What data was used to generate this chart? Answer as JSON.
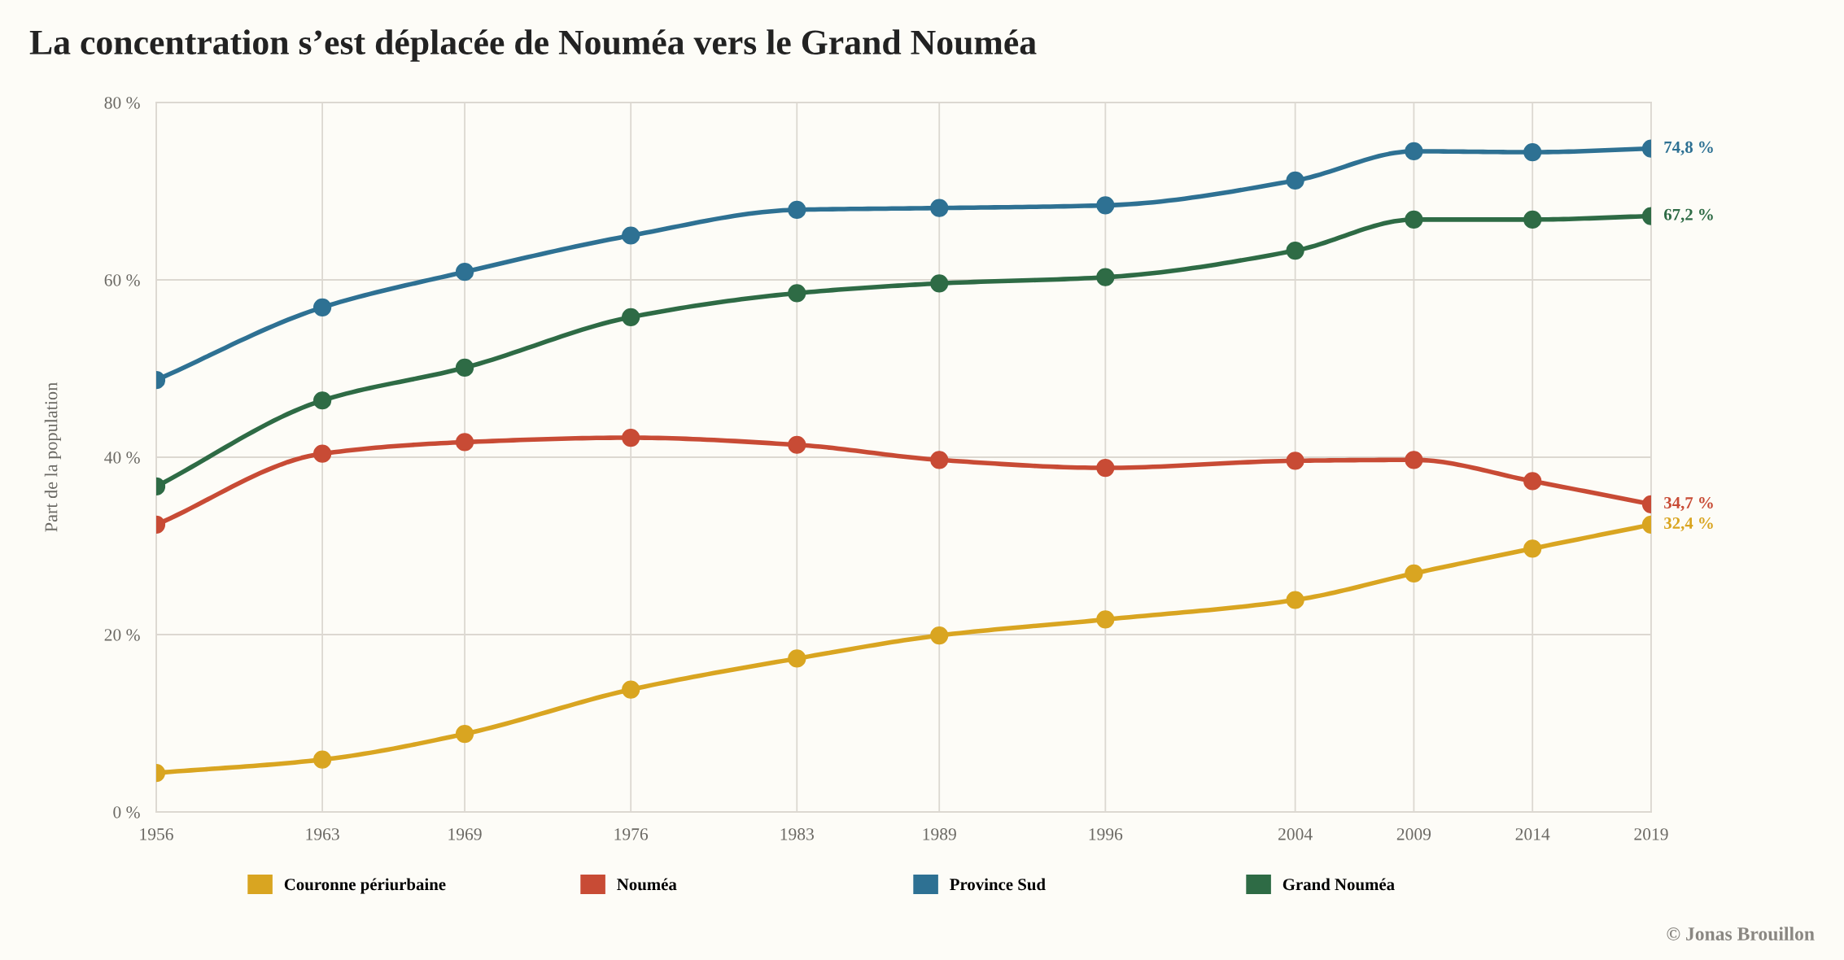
{
  "chart_data": {
    "type": "line",
    "title": "La concentration s’est déplacée de Nouméa vers le Grand Nouméa",
    "ylabel": "Part de la population",
    "x": [
      1956,
      1963,
      1969,
      1976,
      1983,
      1989,
      1996,
      2004,
      2009,
      2014,
      2019
    ],
    "xlim": [
      1956,
      2019
    ],
    "xticks": [
      1956,
      1963,
      1969,
      1976,
      1983,
      1989,
      1996,
      2004,
      2009,
      2014,
      2019
    ],
    "ylim": [
      0,
      80
    ],
    "yticks": [
      {
        "value": 0,
        "label": "0 %"
      },
      {
        "value": 20,
        "label": "20 %"
      },
      {
        "value": 40,
        "label": "40 %"
      },
      {
        "value": 60,
        "label": "60 %"
      },
      {
        "value": 80,
        "label": "80 %"
      }
    ],
    "series": [
      {
        "name": "Couronne périurbaine",
        "color": "#d9a521",
        "values": [
          4.4,
          5.9,
          8.8,
          13.8,
          17.3,
          19.9,
          21.7,
          23.9,
          26.9,
          29.7,
          32.4
        ],
        "value_labels": [
          null,
          null,
          null,
          null,
          null,
          null,
          null,
          null,
          null,
          null,
          "32,4 %"
        ]
      },
      {
        "name": "Nouméa",
        "color": "#c84b35",
        "values": [
          32.4,
          40.4,
          41.7,
          42.2,
          41.4,
          39.7,
          38.8,
          39.6,
          39.7,
          37.3,
          34.7
        ],
        "value_labels": [
          null,
          null,
          null,
          null,
          null,
          null,
          null,
          null,
          null,
          null,
          "34,7 %"
        ]
      },
      {
        "name": "Province Sud",
        "color": "#2e7193",
        "values": [
          48.7,
          56.9,
          60.9,
          65.0,
          67.9,
          68.1,
          68.4,
          71.2,
          74.5,
          74.4,
          74.8
        ],
        "value_labels": [
          null,
          null,
          null,
          null,
          null,
          null,
          null,
          null,
          null,
          null,
          "74,8 %"
        ]
      },
      {
        "name": "Grand Nouméa",
        "color": "#2e6b45",
        "values": [
          36.7,
          46.4,
          50.1,
          55.8,
          58.5,
          59.6,
          60.3,
          63.3,
          66.8,
          66.8,
          67.2
        ],
        "value_labels": [
          null,
          null,
          null,
          null,
          null,
          null,
          null,
          null,
          null,
          null,
          "67,2 %"
        ]
      }
    ],
    "marker": "circle",
    "line_style": "solid",
    "grid": true,
    "legend": "bottom",
    "annotations": [
      "© Jonas Brouillon"
    ]
  }
}
